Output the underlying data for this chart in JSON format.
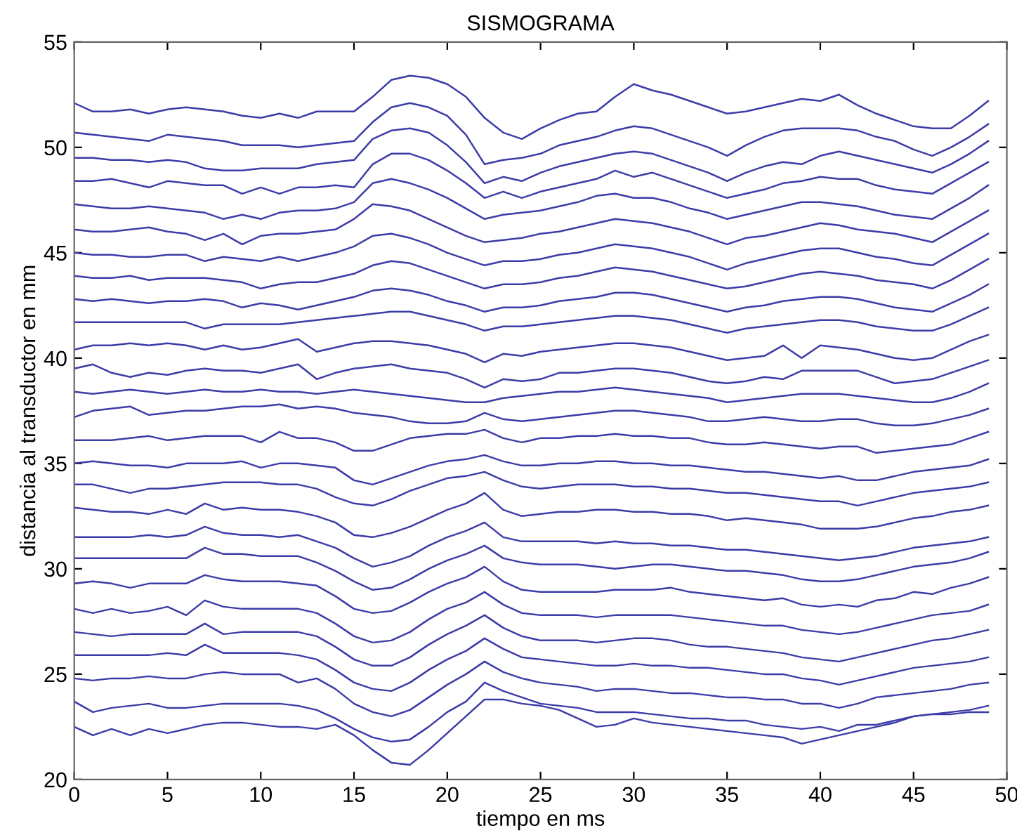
{
  "chart_data": {
    "type": "line",
    "title": "SISMOGRAMA",
    "xlabel": "tiempo en ms",
    "ylabel": "distancia al transductor en mm",
    "x": [
      0,
      1,
      2,
      3,
      4,
      5,
      6,
      7,
      8,
      9,
      10,
      11,
      12,
      13,
      14,
      15,
      16,
      17,
      18,
      19,
      20,
      21,
      22,
      23,
      24,
      25,
      26,
      27,
      28,
      29,
      30,
      31,
      32,
      33,
      34,
      35,
      36,
      37,
      38,
      39,
      40,
      41,
      42,
      43,
      44,
      45,
      46,
      47,
      48,
      49
    ],
    "xlim": [
      0,
      50
    ],
    "xticks": [
      0,
      5,
      10,
      15,
      20,
      25,
      30,
      35,
      40,
      45,
      50
    ],
    "ylim": [
      20,
      55
    ],
    "yticks": [
      20,
      25,
      30,
      35,
      40,
      45,
      50,
      55
    ],
    "grid": false,
    "marker": "none",
    "line_style": "solid",
    "series": [
      {
        "color": "#3c3ca8",
        "values": [
          52.1,
          51.7,
          51.7,
          51.8,
          51.6,
          51.8,
          51.9,
          51.8,
          51.7,
          51.5,
          51.4,
          51.6,
          51.4,
          51.7,
          51.7,
          51.7,
          52.4,
          53.2,
          53.4,
          53.3,
          53.0,
          52.4,
          51.4,
          50.7,
          50.4,
          50.9,
          51.3,
          51.6,
          51.7,
          52.4,
          53.0,
          52.7,
          52.5,
          52.2,
          51.9,
          51.6,
          51.7,
          51.9,
          52.1,
          52.3,
          52.2,
          52.5,
          52.0,
          51.6,
          51.3,
          51.0,
          50.9,
          50.9,
          51.5,
          52.2
        ]
      },
      {
        "color": "#3c3ca8",
        "values": [
          50.7,
          50.6,
          50.5,
          50.4,
          50.3,
          50.6,
          50.5,
          50.4,
          50.3,
          50.1,
          50.1,
          50.1,
          50.0,
          50.1,
          50.2,
          50.3,
          51.2,
          51.9,
          52.1,
          51.9,
          51.5,
          50.6,
          49.2,
          49.4,
          49.5,
          49.7,
          50.1,
          50.3,
          50.5,
          50.8,
          51.0,
          50.9,
          50.6,
          50.3,
          50.0,
          49.6,
          50.1,
          50.5,
          50.8,
          50.9,
          50.9,
          50.9,
          50.8,
          50.5,
          50.3,
          49.9,
          49.6,
          50.0,
          50.5,
          51.1
        ]
      },
      {
        "color": "#3c3ca8",
        "values": [
          49.5,
          49.5,
          49.4,
          49.4,
          49.3,
          49.4,
          49.3,
          49.0,
          48.9,
          48.9,
          49.0,
          49.0,
          49.0,
          49.2,
          49.3,
          49.4,
          50.4,
          50.8,
          50.9,
          50.7,
          50.1,
          49.3,
          48.3,
          48.6,
          48.4,
          48.8,
          49.1,
          49.3,
          49.5,
          49.7,
          49.8,
          49.7,
          49.4,
          49.1,
          48.8,
          48.4,
          48.8,
          49.1,
          49.3,
          49.2,
          49.6,
          49.8,
          49.6,
          49.4,
          49.2,
          49.0,
          48.8,
          49.2,
          49.7,
          50.3
        ]
      },
      {
        "color": "#3c3ca8",
        "values": [
          48.4,
          48.4,
          48.5,
          48.3,
          48.1,
          48.4,
          48.3,
          48.2,
          48.2,
          47.8,
          48.1,
          47.8,
          48.1,
          48.1,
          48.2,
          48.1,
          49.2,
          49.7,
          49.7,
          49.4,
          48.9,
          48.3,
          47.6,
          47.9,
          47.6,
          47.9,
          48.1,
          48.3,
          48.5,
          48.9,
          48.6,
          48.8,
          48.5,
          48.2,
          47.9,
          47.6,
          47.8,
          48.0,
          48.3,
          48.4,
          48.6,
          48.5,
          48.5,
          48.2,
          48.0,
          47.9,
          47.8,
          48.3,
          48.8,
          49.3
        ]
      },
      {
        "color": "#3c3ca8",
        "values": [
          47.3,
          47.2,
          47.1,
          47.1,
          47.2,
          47.1,
          47.0,
          46.9,
          46.6,
          46.8,
          46.6,
          46.9,
          47.0,
          47.0,
          47.1,
          47.4,
          48.3,
          48.5,
          48.3,
          48.0,
          47.6,
          47.1,
          46.6,
          46.8,
          46.9,
          47.0,
          47.2,
          47.4,
          47.7,
          47.8,
          47.6,
          47.6,
          47.4,
          47.1,
          46.9,
          46.6,
          46.8,
          47.0,
          47.2,
          47.4,
          47.4,
          47.3,
          47.2,
          47.0,
          46.8,
          46.7,
          46.6,
          47.1,
          47.6,
          48.2
        ]
      },
      {
        "color": "#3c3ca8",
        "values": [
          46.1,
          46.0,
          46.0,
          46.1,
          46.2,
          46.0,
          45.9,
          45.6,
          45.9,
          45.4,
          45.8,
          45.9,
          45.9,
          46.0,
          46.1,
          46.6,
          47.3,
          47.2,
          47.0,
          46.6,
          46.2,
          45.8,
          45.5,
          45.6,
          45.7,
          45.9,
          46.0,
          46.2,
          46.4,
          46.6,
          46.5,
          46.4,
          46.2,
          46.0,
          45.7,
          45.4,
          45.7,
          45.8,
          46.0,
          46.2,
          46.4,
          46.3,
          46.1,
          46.0,
          45.9,
          45.7,
          45.5,
          46.0,
          46.5,
          47.0
        ]
      },
      {
        "color": "#3c3ca8",
        "values": [
          45.0,
          44.9,
          44.9,
          44.8,
          44.8,
          44.9,
          44.9,
          44.6,
          44.8,
          44.7,
          44.6,
          44.8,
          44.6,
          44.8,
          45.0,
          45.3,
          45.8,
          45.9,
          45.7,
          45.4,
          45.0,
          44.7,
          44.4,
          44.6,
          44.6,
          44.7,
          44.9,
          45.0,
          45.2,
          45.4,
          45.3,
          45.2,
          45.0,
          44.8,
          44.5,
          44.2,
          44.5,
          44.7,
          44.9,
          45.1,
          45.2,
          45.2,
          45.0,
          44.8,
          44.7,
          44.5,
          44.4,
          44.9,
          45.4,
          45.9
        ]
      },
      {
        "color": "#3c3ca8",
        "values": [
          43.9,
          43.8,
          43.8,
          43.9,
          43.7,
          43.8,
          43.8,
          43.8,
          43.7,
          43.6,
          43.3,
          43.5,
          43.6,
          43.6,
          43.8,
          44.0,
          44.4,
          44.6,
          44.5,
          44.2,
          43.9,
          43.6,
          43.3,
          43.5,
          43.5,
          43.6,
          43.8,
          43.9,
          44.1,
          44.3,
          44.2,
          44.1,
          43.9,
          43.7,
          43.5,
          43.3,
          43.4,
          43.6,
          43.8,
          44.0,
          44.1,
          44.0,
          43.9,
          43.7,
          43.6,
          43.5,
          43.3,
          43.7,
          44.2,
          44.7
        ]
      },
      {
        "color": "#3c3ca8",
        "values": [
          42.8,
          42.7,
          42.8,
          42.7,
          42.6,
          42.7,
          42.7,
          42.8,
          42.7,
          42.4,
          42.6,
          42.5,
          42.3,
          42.5,
          42.7,
          42.9,
          43.2,
          43.3,
          43.2,
          43.0,
          42.7,
          42.5,
          42.2,
          42.4,
          42.4,
          42.5,
          42.7,
          42.8,
          42.9,
          43.1,
          43.1,
          43.0,
          42.8,
          42.6,
          42.4,
          42.2,
          42.4,
          42.5,
          42.7,
          42.8,
          42.9,
          42.9,
          42.8,
          42.6,
          42.4,
          42.3,
          42.2,
          42.6,
          43.0,
          43.5
        ]
      },
      {
        "color": "#3c3ca8",
        "values": [
          41.7,
          41.7,
          41.7,
          41.7,
          41.7,
          41.7,
          41.7,
          41.4,
          41.6,
          41.6,
          41.6,
          41.6,
          41.7,
          41.8,
          41.9,
          42.0,
          42.1,
          42.2,
          42.2,
          42.0,
          41.8,
          41.6,
          41.3,
          41.5,
          41.5,
          41.6,
          41.7,
          41.8,
          41.9,
          42.0,
          42.0,
          41.9,
          41.8,
          41.6,
          41.4,
          41.2,
          41.4,
          41.5,
          41.6,
          41.7,
          41.8,
          41.8,
          41.7,
          41.5,
          41.4,
          41.3,
          41.3,
          41.6,
          42.0,
          42.4
        ]
      },
      {
        "color": "#3c3ca8",
        "values": [
          40.4,
          40.6,
          40.6,
          40.7,
          40.6,
          40.7,
          40.6,
          40.4,
          40.6,
          40.4,
          40.5,
          40.7,
          40.9,
          40.3,
          40.5,
          40.7,
          40.8,
          40.8,
          40.7,
          40.6,
          40.4,
          40.2,
          39.8,
          40.2,
          40.1,
          40.3,
          40.4,
          40.5,
          40.6,
          40.7,
          40.7,
          40.6,
          40.5,
          40.3,
          40.1,
          39.9,
          40.0,
          40.1,
          40.6,
          40.0,
          40.6,
          40.5,
          40.4,
          40.2,
          40.0,
          39.9,
          40.0,
          40.4,
          40.8,
          41.1
        ]
      },
      {
        "color": "#3c3ca8",
        "values": [
          39.5,
          39.7,
          39.3,
          39.1,
          39.3,
          39.2,
          39.4,
          39.5,
          39.4,
          39.4,
          39.3,
          39.5,
          39.7,
          39.0,
          39.3,
          39.5,
          39.6,
          39.7,
          39.5,
          39.4,
          39.3,
          39.0,
          38.6,
          39.0,
          38.9,
          39.0,
          39.3,
          39.3,
          39.4,
          39.5,
          39.5,
          39.4,
          39.3,
          39.1,
          38.9,
          38.8,
          38.9,
          39.1,
          39.0,
          39.4,
          39.4,
          39.4,
          39.4,
          39.1,
          38.8,
          38.9,
          39.0,
          39.3,
          39.6,
          39.9
        ]
      },
      {
        "color": "#3c3ca8",
        "values": [
          38.4,
          38.3,
          38.4,
          38.5,
          38.4,
          38.3,
          38.4,
          38.5,
          38.4,
          38.4,
          38.5,
          38.4,
          38.4,
          38.3,
          38.4,
          38.5,
          38.4,
          38.3,
          38.2,
          38.1,
          38.0,
          37.9,
          37.9,
          38.1,
          38.2,
          38.3,
          38.4,
          38.4,
          38.5,
          38.6,
          38.5,
          38.4,
          38.3,
          38.2,
          38.1,
          37.9,
          38.0,
          38.1,
          38.2,
          38.3,
          38.3,
          38.3,
          38.2,
          38.1,
          38.0,
          37.9,
          37.9,
          38.1,
          38.4,
          38.8
        ]
      },
      {
        "color": "#3c3ca8",
        "values": [
          37.2,
          37.5,
          37.6,
          37.7,
          37.3,
          37.4,
          37.5,
          37.5,
          37.6,
          37.7,
          37.7,
          37.8,
          37.6,
          37.7,
          37.6,
          37.4,
          37.3,
          37.2,
          37.0,
          36.9,
          36.9,
          37.0,
          37.4,
          37.1,
          37.0,
          37.1,
          37.2,
          37.3,
          37.4,
          37.5,
          37.5,
          37.4,
          37.3,
          37.2,
          37.0,
          37.0,
          37.1,
          37.2,
          37.1,
          37.0,
          37.0,
          37.1,
          37.1,
          36.9,
          36.8,
          36.8,
          36.9,
          37.1,
          37.3,
          37.6
        ]
      },
      {
        "color": "#3c3ca8",
        "values": [
          36.1,
          36.1,
          36.1,
          36.2,
          36.3,
          36.1,
          36.2,
          36.3,
          36.3,
          36.3,
          36.0,
          36.5,
          36.2,
          36.2,
          36.0,
          35.6,
          35.6,
          35.9,
          36.2,
          36.3,
          36.4,
          36.4,
          36.6,
          36.2,
          36.0,
          36.2,
          36.2,
          36.3,
          36.3,
          36.4,
          36.3,
          36.3,
          36.2,
          36.2,
          36.0,
          35.9,
          35.9,
          36.0,
          35.9,
          35.8,
          35.7,
          35.8,
          35.8,
          35.5,
          35.6,
          35.7,
          35.8,
          35.9,
          36.2,
          36.5
        ]
      },
      {
        "color": "#3c3ca8",
        "values": [
          35.0,
          35.1,
          35.0,
          34.9,
          34.9,
          34.8,
          35.0,
          35.0,
          35.0,
          35.1,
          34.8,
          35.0,
          35.0,
          34.9,
          34.8,
          34.2,
          34.0,
          34.3,
          34.6,
          34.9,
          35.1,
          35.2,
          35.4,
          35.1,
          34.9,
          34.9,
          35.0,
          35.0,
          35.1,
          35.1,
          35.0,
          35.0,
          34.9,
          34.9,
          34.8,
          34.7,
          34.6,
          34.6,
          34.5,
          34.4,
          34.3,
          34.4,
          34.2,
          34.2,
          34.4,
          34.6,
          34.7,
          34.8,
          34.9,
          35.2
        ]
      },
      {
        "color": "#3c3ca8",
        "values": [
          34.0,
          34.0,
          33.8,
          33.6,
          33.8,
          33.8,
          33.9,
          34.0,
          34.1,
          34.1,
          34.1,
          34.0,
          34.0,
          33.8,
          33.4,
          33.1,
          33.0,
          33.3,
          33.7,
          34.0,
          34.3,
          34.4,
          34.6,
          34.2,
          33.9,
          33.8,
          33.9,
          34.0,
          34.0,
          34.0,
          33.9,
          33.9,
          33.8,
          33.8,
          33.7,
          33.6,
          33.6,
          33.5,
          33.4,
          33.3,
          33.2,
          33.2,
          33.0,
          33.2,
          33.4,
          33.6,
          33.7,
          33.8,
          33.9,
          34.1
        ]
      },
      {
        "color": "#3c3ca8",
        "values": [
          32.9,
          32.8,
          32.7,
          32.7,
          32.6,
          32.8,
          32.6,
          33.1,
          32.8,
          32.9,
          32.8,
          32.8,
          32.7,
          32.5,
          32.2,
          31.6,
          31.5,
          31.7,
          32.0,
          32.4,
          32.8,
          33.1,
          33.6,
          32.8,
          32.5,
          32.6,
          32.7,
          32.7,
          32.8,
          32.8,
          32.7,
          32.7,
          32.6,
          32.6,
          32.5,
          32.3,
          32.4,
          32.3,
          32.2,
          32.1,
          31.9,
          31.9,
          31.9,
          32.0,
          32.2,
          32.4,
          32.5,
          32.7,
          32.8,
          33.0
        ]
      },
      {
        "color": "#3c3ca8",
        "values": [
          31.5,
          31.5,
          31.5,
          31.5,
          31.6,
          31.5,
          31.6,
          32.0,
          31.7,
          31.6,
          31.6,
          31.5,
          31.6,
          31.3,
          31.0,
          30.5,
          30.1,
          30.3,
          30.6,
          31.1,
          31.5,
          31.8,
          32.2,
          31.5,
          31.3,
          31.3,
          31.3,
          31.3,
          31.2,
          31.3,
          31.2,
          31.2,
          31.1,
          31.1,
          31.0,
          30.9,
          30.9,
          30.8,
          30.7,
          30.6,
          30.5,
          30.4,
          30.5,
          30.6,
          30.8,
          31.0,
          31.1,
          31.2,
          31.3,
          31.5
        ]
      },
      {
        "color": "#3c3ca8",
        "values": [
          30.5,
          30.5,
          30.5,
          30.5,
          30.5,
          30.5,
          30.5,
          31.0,
          30.7,
          30.7,
          30.6,
          30.6,
          30.6,
          30.3,
          29.9,
          29.4,
          29.0,
          29.1,
          29.5,
          30.0,
          30.4,
          30.7,
          31.1,
          30.5,
          30.3,
          30.2,
          30.2,
          30.2,
          30.1,
          30.0,
          30.1,
          30.2,
          30.2,
          30.1,
          30.0,
          29.9,
          29.9,
          29.8,
          29.7,
          29.5,
          29.4,
          29.4,
          29.5,
          29.7,
          29.9,
          30.1,
          30.2,
          30.3,
          30.5,
          30.8
        ]
      },
      {
        "color": "#3c3ca8",
        "values": [
          29.3,
          29.4,
          29.3,
          29.1,
          29.3,
          29.3,
          29.3,
          29.7,
          29.5,
          29.4,
          29.4,
          29.4,
          29.3,
          29.2,
          28.7,
          28.1,
          27.9,
          28.0,
          28.4,
          28.9,
          29.3,
          29.6,
          30.1,
          29.4,
          29.0,
          28.9,
          28.9,
          28.9,
          28.9,
          29.0,
          29.0,
          29.0,
          29.1,
          28.9,
          28.8,
          28.7,
          28.6,
          28.5,
          28.6,
          28.3,
          28.2,
          28.3,
          28.2,
          28.5,
          28.6,
          28.9,
          28.8,
          29.1,
          29.3,
          29.6
        ]
      },
      {
        "color": "#3c3ca8",
        "values": [
          28.1,
          27.9,
          28.1,
          27.9,
          28.0,
          28.2,
          27.8,
          28.5,
          28.2,
          28.1,
          28.1,
          28.1,
          28.1,
          27.9,
          27.4,
          26.8,
          26.5,
          26.6,
          27.0,
          27.6,
          28.1,
          28.4,
          28.9,
          28.3,
          27.9,
          27.8,
          27.8,
          27.8,
          27.7,
          27.8,
          27.8,
          27.8,
          27.8,
          27.7,
          27.6,
          27.5,
          27.4,
          27.3,
          27.3,
          27.1,
          27.0,
          26.9,
          27.0,
          27.2,
          27.4,
          27.6,
          27.8,
          27.9,
          28.0,
          28.3
        ]
      },
      {
        "color": "#3c3ca8",
        "values": [
          27.0,
          26.9,
          26.8,
          26.9,
          26.9,
          26.9,
          26.9,
          27.4,
          26.9,
          27.0,
          27.0,
          27.0,
          27.0,
          26.8,
          26.3,
          25.7,
          25.4,
          25.4,
          25.8,
          26.4,
          26.9,
          27.3,
          27.8,
          27.2,
          26.8,
          26.6,
          26.6,
          26.6,
          26.5,
          26.6,
          26.7,
          26.7,
          26.6,
          26.4,
          26.3,
          26.3,
          26.2,
          26.1,
          26.0,
          25.8,
          25.7,
          25.6,
          25.8,
          26.0,
          26.2,
          26.4,
          26.6,
          26.7,
          26.9,
          27.1
        ]
      },
      {
        "color": "#3c3ca8",
        "values": [
          25.9,
          25.9,
          25.9,
          25.9,
          25.9,
          26.0,
          25.9,
          26.4,
          26.0,
          26.0,
          26.0,
          26.0,
          25.9,
          25.7,
          25.2,
          24.6,
          24.3,
          24.2,
          24.6,
          25.2,
          25.7,
          26.1,
          26.7,
          26.2,
          25.8,
          25.7,
          25.6,
          25.5,
          25.4,
          25.4,
          25.5,
          25.4,
          25.4,
          25.3,
          25.3,
          25.2,
          25.1,
          25.0,
          25.0,
          24.8,
          24.7,
          24.5,
          24.7,
          24.9,
          25.1,
          25.3,
          25.4,
          25.5,
          25.6,
          25.8
        ]
      },
      {
        "color": "#3c3ca8",
        "values": [
          24.8,
          24.7,
          24.8,
          24.8,
          24.9,
          24.8,
          24.8,
          25.0,
          25.1,
          25.0,
          25.0,
          25.0,
          24.6,
          24.8,
          24.3,
          23.6,
          23.2,
          23.0,
          23.3,
          23.9,
          24.5,
          25.0,
          25.6,
          25.1,
          24.8,
          24.6,
          24.5,
          24.4,
          24.2,
          24.3,
          24.3,
          24.2,
          24.1,
          24.1,
          24.0,
          23.9,
          23.9,
          23.8,
          23.8,
          23.6,
          23.6,
          23.4,
          23.6,
          23.9,
          24.0,
          24.1,
          24.2,
          24.3,
          24.5,
          24.6
        ]
      },
      {
        "color": "#3c3ca8",
        "values": [
          23.7,
          23.2,
          23.4,
          23.5,
          23.6,
          23.4,
          23.4,
          23.5,
          23.6,
          23.6,
          23.6,
          23.6,
          23.5,
          23.3,
          22.9,
          22.4,
          22.0,
          21.8,
          21.9,
          22.5,
          23.2,
          23.7,
          24.6,
          24.2,
          23.9,
          23.6,
          23.5,
          23.4,
          23.2,
          23.2,
          23.2,
          23.1,
          23.0,
          22.9,
          22.9,
          22.8,
          22.8,
          22.6,
          22.5,
          22.4,
          22.5,
          22.3,
          22.6,
          22.6,
          22.8,
          23.0,
          23.1,
          23.2,
          23.3,
          23.5
        ]
      },
      {
        "color": "#3c3ca8",
        "values": [
          22.5,
          22.1,
          22.4,
          22.1,
          22.4,
          22.2,
          22.4,
          22.6,
          22.7,
          22.7,
          22.6,
          22.5,
          22.5,
          22.4,
          22.6,
          22.1,
          21.4,
          20.8,
          20.7,
          21.4,
          22.2,
          23.0,
          23.8,
          23.8,
          23.6,
          23.5,
          23.3,
          22.9,
          22.5,
          22.6,
          22.9,
          22.7,
          22.6,
          22.5,
          22.4,
          22.3,
          22.2,
          22.1,
          22.0,
          21.7,
          21.9,
          22.1,
          22.3,
          22.5,
          22.7,
          23.0,
          23.1,
          23.1,
          23.2,
          23.2
        ]
      }
    ]
  }
}
